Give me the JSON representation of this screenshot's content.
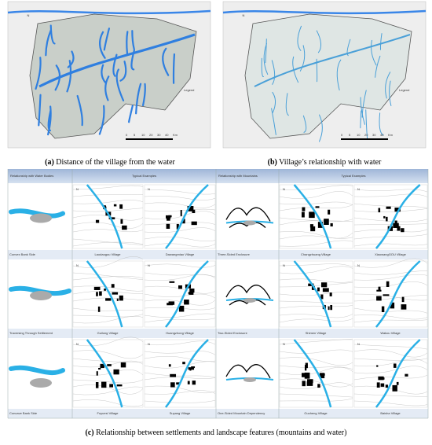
{
  "figure": {
    "panel_a": {
      "label": "(a)",
      "caption": "Distance of the village from the water"
    },
    "panel_b": {
      "label": "(b)",
      "caption": "Village’s relationship with water"
    },
    "panel_c": {
      "label": "(c)",
      "caption": "Relationship between settlements and landscape features (mountains and water)"
    },
    "north": "N",
    "legend": "Legend",
    "scale": [
      "0",
      "5",
      "10",
      "20",
      "30",
      "40",
      "Km"
    ]
  },
  "table": {
    "header": [
      "Relationship with Water Bodies",
      "Typical Examples",
      "Relationship with Mountains",
      "Typical Examples"
    ],
    "rows": [
      [
        "Convex Bank Side",
        "Laodaogou Village",
        "Dawangmiao Village",
        "Three-Sided Enclosure",
        "Changzhuang Village",
        "XiaowangGOU Village"
      ],
      [
        "Traversing Through Settlement",
        "Guilong Village",
        "Huangzhong Village",
        "Two-Sided Enclosure",
        "Shimen Village",
        "Wakou Village"
      ],
      [
        "Concave Bank Side",
        "Foyuesi Village",
        "Suyang Village",
        "One-Sided Mountain Dependency",
        "Gucheng Village",
        "Baisha Village"
      ]
    ]
  }
}
